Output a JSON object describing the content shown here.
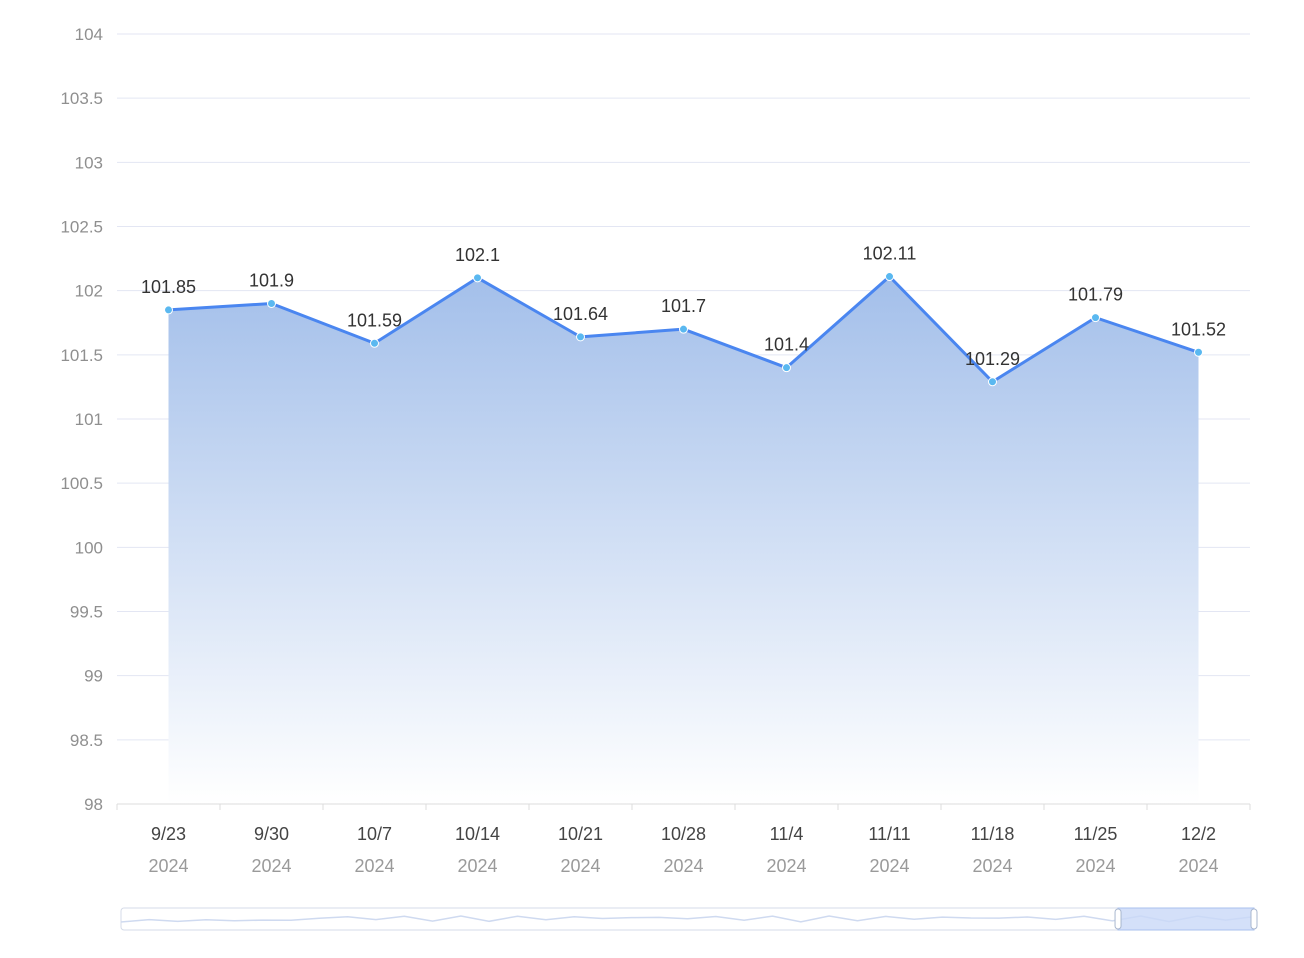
{
  "chart_data": {
    "type": "area",
    "title": "",
    "xlabel": "",
    "ylabel": "",
    "ylim": [
      98,
      104
    ],
    "y_ticks": [
      98,
      98.5,
      99,
      99.5,
      100,
      100.5,
      101,
      101.5,
      102,
      102.5,
      103,
      103.5,
      104
    ],
    "y_tick_labels": [
      "98",
      "98.5",
      "99",
      "99.5",
      "100",
      "100.5",
      "101",
      "101.5",
      "102",
      "102.5",
      "103",
      "103.5",
      "104"
    ],
    "x_dates": [
      "2024-09-23",
      "2024-09-30",
      "2024-10-07",
      "2024-10-14",
      "2024-10-21",
      "2024-10-28",
      "2024-11-04",
      "2024-11-11",
      "2024-11-18",
      "2024-11-25",
      "2024-12-02"
    ],
    "x_tick_labels": [
      {
        "main": "9/23",
        "sub": "2024"
      },
      {
        "main": "9/30",
        "sub": "2024"
      },
      {
        "main": "10/7",
        "sub": "2024"
      },
      {
        "main": "10/14",
        "sub": "2024"
      },
      {
        "main": "10/21",
        "sub": "2024"
      },
      {
        "main": "10/28",
        "sub": "2024"
      },
      {
        "main": "11/4",
        "sub": "2024"
      },
      {
        "main": "11/11",
        "sub": "2024"
      },
      {
        "main": "11/18",
        "sub": "2024"
      },
      {
        "main": "11/25",
        "sub": "2024"
      },
      {
        "main": "12/2",
        "sub": "2024"
      }
    ],
    "values": [
      101.85,
      101.9,
      101.59,
      102.1,
      101.64,
      101.7,
      101.4,
      102.11,
      101.29,
      101.79,
      101.52
    ],
    "data_labels": [
      "101.85",
      "101.9",
      "101.59",
      "102.1",
      "101.64",
      "101.7",
      "101.4",
      "102.11",
      "101.29",
      "101.79",
      "101.52"
    ],
    "grid": true,
    "legend": "none",
    "colors": {
      "line": "#4a86f0",
      "area_top": "#a3bfea",
      "area_bottom": "#ffffff",
      "marker": "#5ab8f0",
      "grid": "#e3e6f3",
      "axis": "#dcdcdc"
    },
    "data_zoom": {
      "window_start_fraction": 0.88,
      "window_end_fraction": 1.0
    }
  }
}
